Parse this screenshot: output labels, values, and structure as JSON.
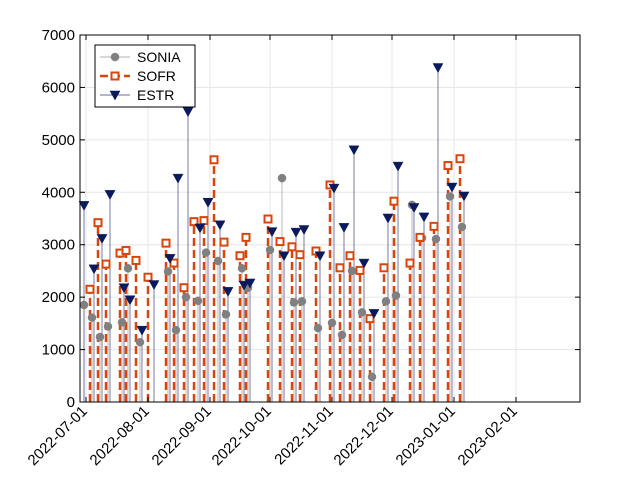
{
  "chart_data": {
    "type": "stem",
    "title": "",
    "xlabel": "",
    "ylabel": "",
    "ylim": [
      0,
      7000
    ],
    "yticks": [
      0,
      1000,
      2000,
      3000,
      4000,
      5000,
      6000,
      7000
    ],
    "grid": true,
    "legend_position": "top-left",
    "xtick_labels": [
      "2022-07-01",
      "2022-08-01",
      "2022-09-01",
      "2022-10-01",
      "2022-11-01",
      "2022-12-01",
      "2023-01-01",
      "2023-02-01"
    ],
    "series": [
      {
        "name": "SONIA",
        "color": "#808080",
        "line_color": "#b0b0b0",
        "marker": "circle",
        "line_style": "solid",
        "points": [
          {
            "date": "2022-06-30",
            "value": 1850
          },
          {
            "date": "2022-07-04",
            "value": 1610
          },
          {
            "date": "2022-07-08",
            "value": 1240
          },
          {
            "date": "2022-07-12",
            "value": 1440
          },
          {
            "date": "2022-07-19",
            "value": 1520
          },
          {
            "date": "2022-07-22",
            "value": 2550
          },
          {
            "date": "2022-07-28",
            "value": 1140
          },
          {
            "date": "2022-08-11",
            "value": 2490
          },
          {
            "date": "2022-08-15",
            "value": 1370
          },
          {
            "date": "2022-08-20",
            "value": 2000
          },
          {
            "date": "2022-08-26",
            "value": 1930
          },
          {
            "date": "2022-08-30",
            "value": 2850
          },
          {
            "date": "2022-09-05",
            "value": 2690
          },
          {
            "date": "2022-09-09",
            "value": 1670
          },
          {
            "date": "2022-09-17",
            "value": 2550
          },
          {
            "date": "2022-09-20",
            "value": 2180
          },
          {
            "date": "2022-10-01",
            "value": 2900
          },
          {
            "date": "2022-10-07",
            "value": 4270
          },
          {
            "date": "2022-10-13",
            "value": 1900
          },
          {
            "date": "2022-10-17",
            "value": 1920
          },
          {
            "date": "2022-10-25",
            "value": 1410
          },
          {
            "date": "2022-11-01",
            "value": 1510
          },
          {
            "date": "2022-11-06",
            "value": 1280
          },
          {
            "date": "2022-11-11",
            "value": 2500
          },
          {
            "date": "2022-11-16",
            "value": 1710
          },
          {
            "date": "2022-11-21",
            "value": 480
          },
          {
            "date": "2022-11-28",
            "value": 1920
          },
          {
            "date": "2022-12-03",
            "value": 2030
          },
          {
            "date": "2022-12-11",
            "value": 3760
          },
          {
            "date": "2022-12-16",
            "value": 3130
          },
          {
            "date": "2022-12-23",
            "value": 3110
          },
          {
            "date": "2022-12-30",
            "value": 3920
          },
          {
            "date": "2023-01-05",
            "value": 3340
          }
        ]
      },
      {
        "name": "SOFR",
        "color": "#d9450b",
        "line_color": "#d9450b",
        "marker": "square",
        "line_style": "dashed",
        "points": [
          {
            "date": "2022-07-03",
            "value": 2150
          },
          {
            "date": "2022-07-07",
            "value": 3420
          },
          {
            "date": "2022-07-11",
            "value": 2630
          },
          {
            "date": "2022-07-18",
            "value": 2840
          },
          {
            "date": "2022-07-21",
            "value": 2890
          },
          {
            "date": "2022-07-26",
            "value": 2700
          },
          {
            "date": "2022-08-01",
            "value": 2380
          },
          {
            "date": "2022-08-10",
            "value": 3030
          },
          {
            "date": "2022-08-14",
            "value": 2650
          },
          {
            "date": "2022-08-19",
            "value": 2180
          },
          {
            "date": "2022-08-24",
            "value": 3440
          },
          {
            "date": "2022-08-29",
            "value": 3460
          },
          {
            "date": "2022-09-03",
            "value": 4620
          },
          {
            "date": "2022-09-08",
            "value": 3050
          },
          {
            "date": "2022-09-16",
            "value": 2790
          },
          {
            "date": "2022-09-19",
            "value": 3140
          },
          {
            "date": "2022-09-30",
            "value": 3490
          },
          {
            "date": "2022-10-06",
            "value": 3060
          },
          {
            "date": "2022-10-12",
            "value": 2960
          },
          {
            "date": "2022-10-16",
            "value": 2810
          },
          {
            "date": "2022-10-24",
            "value": 2880
          },
          {
            "date": "2022-10-31",
            "value": 4140
          },
          {
            "date": "2022-11-05",
            "value": 2560
          },
          {
            "date": "2022-11-10",
            "value": 2790
          },
          {
            "date": "2022-11-15",
            "value": 2510
          },
          {
            "date": "2022-11-20",
            "value": 1590
          },
          {
            "date": "2022-11-27",
            "value": 2560
          },
          {
            "date": "2022-12-02",
            "value": 3830
          },
          {
            "date": "2022-12-10",
            "value": 2650
          },
          {
            "date": "2022-12-15",
            "value": 3140
          },
          {
            "date": "2022-12-22",
            "value": 3350
          },
          {
            "date": "2022-12-29",
            "value": 4510
          },
          {
            "date": "2023-01-04",
            "value": 4640
          }
        ]
      },
      {
        "name": "ESTR",
        "color": "#0a1a5c",
        "line_color": "#6a6a9a",
        "marker": "triangle-down",
        "line_style": "solid",
        "points": [
          {
            "date": "2022-06-30",
            "value": 3750
          },
          {
            "date": "2022-07-05",
            "value": 2540
          },
          {
            "date": "2022-07-09",
            "value": 3120
          },
          {
            "date": "2022-07-13",
            "value": 3960
          },
          {
            "date": "2022-07-20",
            "value": 2180
          },
          {
            "date": "2022-07-23",
            "value": 1950
          },
          {
            "date": "2022-07-29",
            "value": 1370
          },
          {
            "date": "2022-08-04",
            "value": 2240
          },
          {
            "date": "2022-08-12",
            "value": 2740
          },
          {
            "date": "2022-08-16",
            "value": 4270
          },
          {
            "date": "2022-08-21",
            "value": 5540
          },
          {
            "date": "2022-08-27",
            "value": 3320
          },
          {
            "date": "2022-08-31",
            "value": 3810
          },
          {
            "date": "2022-09-06",
            "value": 3380
          },
          {
            "date": "2022-09-10",
            "value": 2110
          },
          {
            "date": "2022-09-18",
            "value": 2230
          },
          {
            "date": "2022-09-21",
            "value": 2270
          },
          {
            "date": "2022-10-02",
            "value": 3250
          },
          {
            "date": "2022-10-08",
            "value": 2790
          },
          {
            "date": "2022-10-14",
            "value": 3240
          },
          {
            "date": "2022-10-18",
            "value": 3290
          },
          {
            "date": "2022-10-26",
            "value": 2790
          },
          {
            "date": "2022-11-02",
            "value": 4080
          },
          {
            "date": "2022-11-07",
            "value": 3330
          },
          {
            "date": "2022-11-12",
            "value": 4810
          },
          {
            "date": "2022-11-17",
            "value": 2650
          },
          {
            "date": "2022-11-22",
            "value": 1690
          },
          {
            "date": "2022-11-29",
            "value": 3510
          },
          {
            "date": "2022-12-04",
            "value": 4500
          },
          {
            "date": "2022-12-12",
            "value": 3710
          },
          {
            "date": "2022-12-17",
            "value": 3530
          },
          {
            "date": "2022-12-24",
            "value": 6380
          },
          {
            "date": "2022-12-31",
            "value": 4100
          },
          {
            "date": "2023-01-06",
            "value": 3930
          }
        ]
      }
    ]
  }
}
